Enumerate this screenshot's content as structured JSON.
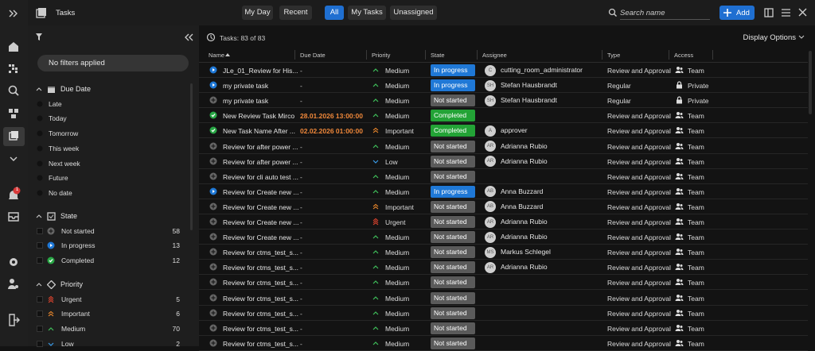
{
  "header": {
    "title": "Tasks",
    "views": [
      "My Day",
      "Recent"
    ],
    "filters": [
      "All",
      "My Tasks",
      "Unassigned"
    ],
    "search_placeholder": "Search name",
    "add_button": "Add"
  },
  "nav": {
    "badge": "1"
  },
  "filter_panel": {
    "summary": "No filters applied",
    "groups": [
      {
        "title": "Due Date",
        "items": [
          {
            "label": "Late"
          },
          {
            "label": "Today"
          },
          {
            "label": "Tomorrow"
          },
          {
            "label": "This week"
          },
          {
            "label": "Next week"
          },
          {
            "label": "Future"
          },
          {
            "label": "No date"
          }
        ]
      },
      {
        "title": "State",
        "items": [
          {
            "label": "Not started",
            "count": 58
          },
          {
            "label": "In progress",
            "count": 13
          },
          {
            "label": "Completed",
            "count": 12
          }
        ]
      },
      {
        "title": "Priority",
        "items": [
          {
            "label": "Urgent",
            "count": 5
          },
          {
            "label": "Important",
            "count": 6
          },
          {
            "label": "Medium",
            "count": 70
          },
          {
            "label": "Low",
            "count": 2
          }
        ]
      }
    ]
  },
  "list": {
    "count_label": "Tasks: 83 of 83",
    "display_options": "Display Options",
    "columns": [
      "Name",
      "Due Date",
      "Priority",
      "State",
      "Assignee",
      "Type",
      "Access"
    ],
    "rows": [
      {
        "name": "JLe_01_Review for His...",
        "due": "-",
        "priority": "Medium",
        "state": "In progress",
        "initials": "C",
        "assignee": "cutting_room_administrator",
        "type": "Review and Approval",
        "access": "Team"
      },
      {
        "name": "my private task",
        "due": "-",
        "priority": "Medium",
        "state": "In progress",
        "initials": "SH",
        "assignee": "Stefan Hausbrandt",
        "type": "Regular",
        "access": "Private",
        "private": true
      },
      {
        "name": "my private task",
        "due": "-",
        "priority": "Medium",
        "state": "Not started",
        "initials": "SH",
        "assignee": "Stefan Hausbrandt",
        "type": "Regular",
        "access": "Private",
        "private": true
      },
      {
        "name": "New Review Task Mirco",
        "due": "28.01.2026 13:00:00",
        "overdue": true,
        "priority": "Medium",
        "state": "Completed",
        "type": "Review and Approval",
        "access": "Team"
      },
      {
        "name": "New Task Name After ...",
        "due": "02.02.2026 01:00:00",
        "overdue": true,
        "priority": "Important",
        "state": "Completed",
        "initials": "A",
        "assignee": "approver",
        "type": "Review and Approval",
        "access": "Team"
      },
      {
        "name": "Review for after power ...",
        "due": "-",
        "priority": "Medium",
        "state": "Not started",
        "initials": "AR",
        "assignee": "Adrianna Rubio",
        "type": "Review and Approval",
        "access": "Team"
      },
      {
        "name": "Review for after power ...",
        "due": "-",
        "priority": "Low",
        "state": "Not started",
        "initials": "AR",
        "assignee": "Adrianna Rubio",
        "type": "Review and Approval",
        "access": "Team"
      },
      {
        "name": "Review for cli auto test ...",
        "due": "-",
        "priority": "Medium",
        "state": "Not started",
        "type": "Review and Approval",
        "access": "Team"
      },
      {
        "name": "Review for Create new ...",
        "due": "-",
        "priority": "Medium",
        "state": "In progress",
        "initials": "AB",
        "assignee": "Anna Buzzard",
        "type": "Review and Approval",
        "access": "Team"
      },
      {
        "name": "Review for Create new ...",
        "due": "-",
        "priority": "Important",
        "state": "Not started",
        "initials": "AB",
        "assignee": "Anna Buzzard",
        "type": "Review and Approval",
        "access": "Team"
      },
      {
        "name": "Review for Create new ...",
        "due": "-",
        "priority": "Urgent",
        "state": "Not started",
        "initials": "AR",
        "assignee": "Adrianna Rubio",
        "type": "Review and Approval",
        "access": "Team"
      },
      {
        "name": "Review for Create new ...",
        "due": "-",
        "priority": "Medium",
        "state": "Not started",
        "initials": "AR",
        "assignee": "Adrianna Rubio",
        "type": "Review and Approval",
        "access": "Team"
      },
      {
        "name": "Review for ctms_test_s...",
        "due": "-",
        "priority": "Medium",
        "state": "Not started",
        "initials": "MS",
        "assignee": "Markus Schlegel",
        "type": "Review and Approval",
        "access": "Team"
      },
      {
        "name": "Review for ctms_test_s...",
        "due": "-",
        "priority": "Medium",
        "state": "Not started",
        "initials": "AR",
        "assignee": "Adrianna Rubio",
        "type": "Review and Approval",
        "access": "Team"
      },
      {
        "name": "Review for ctms_test_s...",
        "due": "-",
        "priority": "Medium",
        "state": "Not started",
        "type": "Review and Approval",
        "access": "Team"
      },
      {
        "name": "Review for ctms_test_s...",
        "due": "-",
        "priority": "Medium",
        "state": "Not started",
        "type": "Review and Approval",
        "access": "Team"
      },
      {
        "name": "Review for ctms_test_s...",
        "due": "-",
        "priority": "Medium",
        "state": "Not started",
        "type": "Review and Approval",
        "access": "Team"
      },
      {
        "name": "Review for ctms_test_s...",
        "due": "-",
        "priority": "Medium",
        "state": "Not started",
        "type": "Review and Approval",
        "access": "Team"
      },
      {
        "name": "Review for ctms_test_s...",
        "due": "-",
        "priority": "Medium",
        "state": "Not started",
        "type": "Review and Approval",
        "access": "Team"
      }
    ]
  }
}
